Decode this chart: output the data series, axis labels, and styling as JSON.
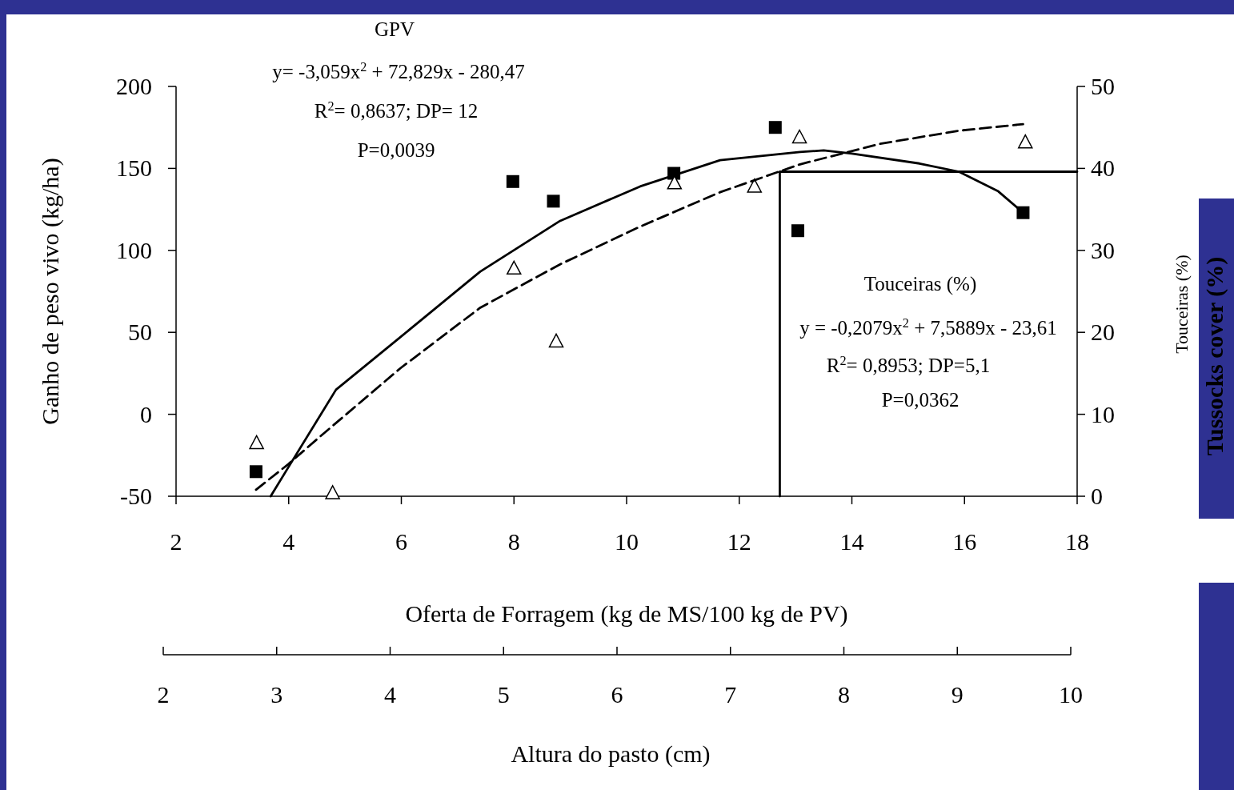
{
  "chart_data": {
    "type": "scatter",
    "xlabel": "Oferta de Forragem (kg de MS/100 kg de PV)",
    "ylabel": "Ganho de peso vivo (kg/ha)",
    "y2label": "Tussocks cover (%)",
    "x2label": "Altura do pasto (cm)",
    "xlim": [
      2,
      18
    ],
    "xticks": [
      2,
      4,
      6,
      8,
      10,
      12,
      14,
      16,
      18
    ],
    "ylim": [
      -50,
      200
    ],
    "yticks": [
      -50,
      0,
      50,
      100,
      150,
      200
    ],
    "y2lim": [
      0,
      50
    ],
    "y2ticks": [
      0,
      10,
      20,
      30,
      40,
      50
    ],
    "x2lim": [
      2,
      10
    ],
    "x2ticks": [
      2,
      3,
      4,
      5,
      6,
      7,
      8,
      9,
      10
    ],
    "grid": false,
    "annotations": [
      "GPV",
      "y= -3,059x$^{2}$ + 72,829x - 280,47",
      "R$^{2}$= 0,8637; DP= 12",
      "P=0,0039",
      "Touceiras (%)",
      "y = -0,2079x$^{2}$ + 7,5889x - 23,61",
      "R$^{2}$= 0,8953; DP=5,1",
      "P=0,0362",
      "Touceiras (%)"
    ],
    "series": [
      {
        "marker": "square",
        "color": "#000000",
        "x": [
          3.42,
          7.98,
          8.7,
          10.84,
          12.64,
          13.04,
          17.04
        ],
        "values": [
          -35,
          142,
          130,
          147,
          175,
          112,
          123
        ]
      },
      {
        "marker": "triangle",
        "axis": "y2",
        "color": "#000000",
        "x": [
          3.43,
          4.78,
          8.0,
          8.75,
          10.85,
          12.27,
          13.07,
          17.08
        ],
        "values": [
          6.5,
          0.4,
          27.8,
          18.9,
          38.2,
          37.8,
          43.8,
          43.2
        ]
      },
      {
        "type": "line",
        "line_style": "solid",
        "color": "#000000",
        "x": [
          3.68,
          4.0,
          4.84,
          5.98,
          7.4,
          8.82,
          10.24,
          11.66,
          13.08,
          13.5,
          14.0,
          15.2,
          15.9,
          16.6,
          17.04
        ],
        "values": [
          -50,
          -32,
          15,
          47,
          87,
          118,
          139,
          155,
          160,
          161,
          159,
          153,
          148,
          136,
          123
        ]
      },
      {
        "type": "line",
        "line_style": "dashed",
        "axis": "y2",
        "color": "#000000",
        "x": [
          3.42,
          3.99,
          4.56,
          5.98,
          7.4,
          8.82,
          10.24,
          11.66,
          13.08,
          14.5,
          15.9,
          17.04
        ],
        "values": [
          0.8,
          3.9,
          7.3,
          15.6,
          23,
          28.3,
          32.9,
          37.1,
          40.5,
          43,
          44.6,
          45.4
        ]
      },
      {
        "type": "line",
        "line_style": "solid",
        "color": "#000000",
        "x": [
          12.72,
          12.72,
          18
        ],
        "values": [
          -50,
          148,
          148
        ]
      }
    ]
  }
}
